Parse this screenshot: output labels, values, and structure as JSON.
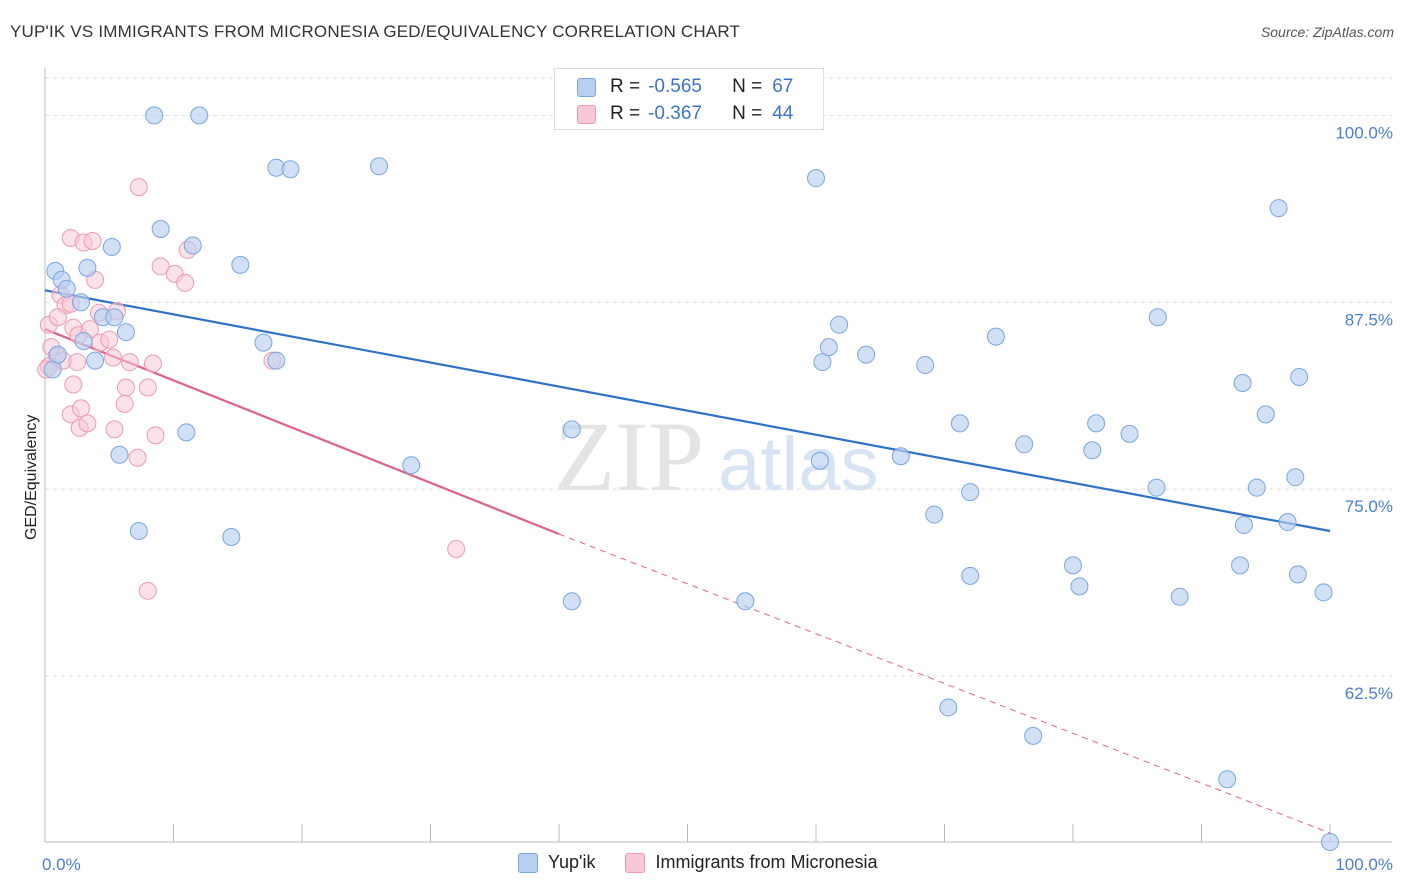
{
  "title": "YUP'IK VS IMMIGRANTS FROM MICRONESIA GED/EQUIVALENCY CORRELATION CHART",
  "source": "Source: ZipAtlas.com",
  "watermark": {
    "zip": "ZIP",
    "atlas": "atlas"
  },
  "legend": {
    "rows": [
      {
        "r_label": "R =",
        "r_value": "-0.565",
        "n_label": "N =",
        "n_value": "67",
        "color": "#9ec0ec"
      },
      {
        "r_label": "R =",
        "r_value": "-0.367",
        "n_label": "N =",
        "n_value": "44",
        "color": "#f6b8cb"
      }
    ]
  },
  "bottom_legend": [
    "Yup'ik",
    "Immigrants from Micronesia"
  ],
  "colors": {
    "blue_fill": "#b8d0f0",
    "blue_stroke": "#7aa6e0",
    "blue_line": "#2f72c8",
    "pink_fill": "#f8c8d6",
    "pink_stroke": "#ee9ab4",
    "pink_line": "#e0608a",
    "grid": "#dddddd",
    "axis_text": "#4a7fd0"
  },
  "chart_data": {
    "type": "scatter",
    "title": "YUP'IK VS IMMIGRANTS FROM MICRONESIA GED/EQUIVALENCY CORRELATION CHART",
    "xlabel": "",
    "ylabel": "GED/Equivalency",
    "x_tick_labels": [
      "0.0%",
      "100.0%"
    ],
    "y_tick_labels": [
      "100.0%",
      "87.5%",
      "75.0%",
      "62.5%"
    ],
    "y_ticks": [
      100.0,
      87.5,
      75.0,
      62.5
    ],
    "xlim": [
      0,
      100
    ],
    "ylim": [
      51.4,
      102.5
    ],
    "grid": true,
    "legend_position": "top-center",
    "series": [
      {
        "name": "Yup'ik",
        "points": [
          [
            8.5,
            100.0
          ],
          [
            12.0,
            100.0
          ],
          [
            18.0,
            96.5
          ],
          [
            19.1,
            96.4
          ],
          [
            26.0,
            96.6
          ],
          [
            60.0,
            95.8
          ],
          [
            96.0,
            93.8
          ],
          [
            0.8,
            89.6
          ],
          [
            1.3,
            89.0
          ],
          [
            1.7,
            88.4
          ],
          [
            2.8,
            87.5
          ],
          [
            3.3,
            89.8
          ],
          [
            5.2,
            91.2
          ],
          [
            9.0,
            92.4
          ],
          [
            11.5,
            91.3
          ],
          [
            15.2,
            90.0
          ],
          [
            4.5,
            86.5
          ],
          [
            5.4,
            86.5
          ],
          [
            6.3,
            85.5
          ],
          [
            3.0,
            84.9
          ],
          [
            3.9,
            83.6
          ],
          [
            17.0,
            84.8
          ],
          [
            18.0,
            83.6
          ],
          [
            0.6,
            83.0
          ],
          [
            1.0,
            84.0
          ],
          [
            11.0,
            78.8
          ],
          [
            5.8,
            77.3
          ],
          [
            7.3,
            72.2
          ],
          [
            14.5,
            71.8
          ],
          [
            28.5,
            76.6
          ],
          [
            41.0,
            79.0
          ],
          [
            60.3,
            76.9
          ],
          [
            60.5,
            83.5
          ],
          [
            61.0,
            84.5
          ],
          [
            61.8,
            86.0
          ],
          [
            63.9,
            84.0
          ],
          [
            66.6,
            77.2
          ],
          [
            68.5,
            83.3
          ],
          [
            69.2,
            73.3
          ],
          [
            71.2,
            79.4
          ],
          [
            72.0,
            74.8
          ],
          [
            72.0,
            69.2
          ],
          [
            74.0,
            85.2
          ],
          [
            76.2,
            78.0
          ],
          [
            80.0,
            69.9
          ],
          [
            80.5,
            68.5
          ],
          [
            81.5,
            77.6
          ],
          [
            81.8,
            79.4
          ],
          [
            84.4,
            78.7
          ],
          [
            86.5,
            75.1
          ],
          [
            86.6,
            86.5
          ],
          [
            88.3,
            67.8
          ],
          [
            93.0,
            69.9
          ],
          [
            93.2,
            82.1
          ],
          [
            93.3,
            72.6
          ],
          [
            94.3,
            75.1
          ],
          [
            95.0,
            80.0
          ],
          [
            96.7,
            72.8
          ],
          [
            97.3,
            75.8
          ],
          [
            97.5,
            69.3
          ],
          [
            97.6,
            82.5
          ],
          [
            99.5,
            68.1
          ],
          [
            70.3,
            60.4
          ],
          [
            76.9,
            58.5
          ],
          [
            92.0,
            55.6
          ],
          [
            41.0,
            67.5
          ],
          [
            54.5,
            67.5
          ],
          [
            100.0,
            51.4
          ]
        ],
        "trendline": [
          [
            0,
            88.3
          ],
          [
            100,
            72.2
          ]
        ]
      },
      {
        "name": "Immigrants from Micronesia",
        "points": [
          [
            7.3,
            95.2
          ],
          [
            2.0,
            91.8
          ],
          [
            3.0,
            91.5
          ],
          [
            3.7,
            91.6
          ],
          [
            9.0,
            89.9
          ],
          [
            10.1,
            89.4
          ],
          [
            11.1,
            91.0
          ],
          [
            10.9,
            88.8
          ],
          [
            3.9,
            89.0
          ],
          [
            1.2,
            88.0
          ],
          [
            1.6,
            87.3
          ],
          [
            2.0,
            87.4
          ],
          [
            4.2,
            86.8
          ],
          [
            5.6,
            86.9
          ],
          [
            0.3,
            86.0
          ],
          [
            1.0,
            86.5
          ],
          [
            2.2,
            85.8
          ],
          [
            2.6,
            85.3
          ],
          [
            3.5,
            85.7
          ],
          [
            4.3,
            84.8
          ],
          [
            5.0,
            85.0
          ],
          [
            0.5,
            84.5
          ],
          [
            0.9,
            83.9
          ],
          [
            1.4,
            83.6
          ],
          [
            2.5,
            83.5
          ],
          [
            5.3,
            83.8
          ],
          [
            6.6,
            83.5
          ],
          [
            8.4,
            83.4
          ],
          [
            17.7,
            83.6
          ],
          [
            2.2,
            82.0
          ],
          [
            6.3,
            81.8
          ],
          [
            8.0,
            81.8
          ],
          [
            2.0,
            80.0
          ],
          [
            2.8,
            80.4
          ],
          [
            6.2,
            80.7
          ],
          [
            2.7,
            79.1
          ],
          [
            3.3,
            79.4
          ],
          [
            5.4,
            79.0
          ],
          [
            8.6,
            78.6
          ],
          [
            7.2,
            77.1
          ],
          [
            32.0,
            71.0
          ],
          [
            8.0,
            68.2
          ],
          [
            0.3,
            83.2
          ],
          [
            0.1,
            83.0
          ]
        ],
        "trendline": [
          [
            0,
            85.7
          ],
          [
            40,
            72.0
          ]
        ],
        "trendline_extension": [
          [
            40,
            72.0
          ],
          [
            100,
            52.0
          ]
        ]
      }
    ]
  }
}
